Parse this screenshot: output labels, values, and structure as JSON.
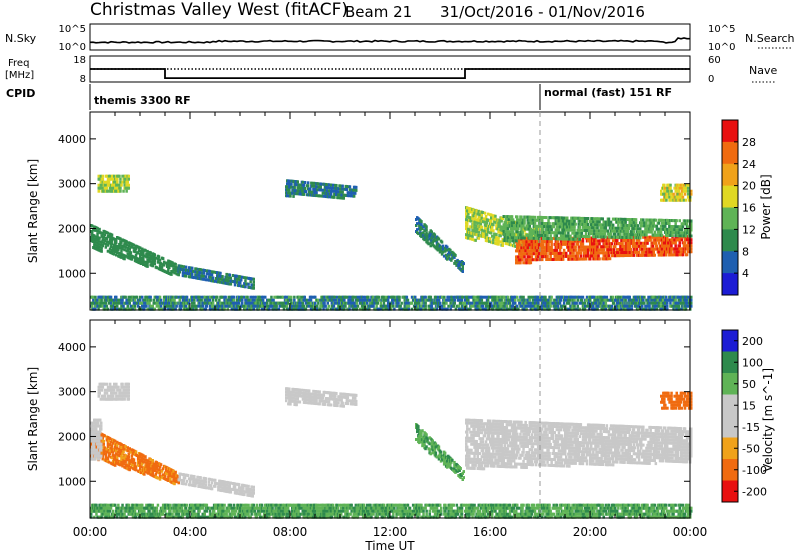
{
  "header": {
    "title": "Christmas Valley West (fitACF)",
    "beam": "Beam 21",
    "date_range": "31/Oct/2016 - 01/Nov/2016"
  },
  "summary": {
    "nsky_label": "N.Sky",
    "nsearch_label": "N.Search",
    "nsky_ticks": [
      "10^5",
      "10^0"
    ],
    "nsearch_ticks": [
      "10^5",
      "10^0"
    ],
    "freq_label": [
      "Freq",
      "[MHz]"
    ],
    "freq_ticks": [
      "18",
      "8"
    ],
    "nave_label": "Nave",
    "nave_ticks": [
      "60",
      "0"
    ],
    "cpid_label": "CPID",
    "cpid_segments": [
      "themis 3300 RF",
      "normal (fast) 151 RF"
    ],
    "cpid_switch_hour": 18.0,
    "freq_series": {
      "x_hours": [
        0,
        3.0,
        3.0,
        15.0,
        15.0,
        24
      ],
      "y_mhz": [
        13.0,
        13.0,
        9.5,
        9.5,
        13.0,
        13.0
      ]
    },
    "nave_series": {
      "x_hours": [
        0,
        24
      ],
      "y": [
        30,
        30
      ]
    }
  },
  "xaxis": {
    "label": "Time UT",
    "ticks": [
      "00:00",
      "04:00",
      "08:00",
      "12:00",
      "16:00",
      "20:00",
      "00:00"
    ],
    "range_hours": [
      0,
      24
    ]
  },
  "colors": {
    "power": [
      "#1c1cd4",
      "#1e5fb0",
      "#2e8a4d",
      "#5fb356",
      "#e0d823",
      "#f0a21a",
      "#f06b10",
      "#e81010"
    ],
    "velocity": [
      "#e81010",
      "#f06b10",
      "#f0a21a",
      "#c8c8c8",
      "#c8c8c8",
      "#5fb356",
      "#2e8a4d",
      "#1c1cd4"
    ],
    "grey": "#c8c8c8"
  },
  "chart_data": [
    {
      "type": "heatmap",
      "title": "Power",
      "ylabel": "Slant Range [km]",
      "xlabel": "",
      "ylim": [
        180,
        4600
      ],
      "yticks": [
        "1000",
        "2000",
        "3000",
        "4000"
      ],
      "colorbar": {
        "label": "Power [dB]",
        "ticks": [
          "4",
          "8",
          "12",
          "16",
          "20",
          "24",
          "28"
        ],
        "range": [
          0,
          32
        ]
      },
      "echo_regions": [
        {
          "t": [
            0.0,
            3.5
          ],
          "r_start": [
            2100,
            1200
          ],
          "r_end": [
            1600,
            950
          ],
          "value": [
            8,
            12
          ]
        },
        {
          "t": [
            3.5,
            6.5
          ],
          "r_start": [
            1200,
            900
          ],
          "r_end": [
            1000,
            650
          ],
          "value": [
            6,
            10
          ]
        },
        {
          "t": [
            0.3,
            1.5
          ],
          "r_start": [
            3200,
            3200
          ],
          "r_end": [
            2800,
            2800
          ],
          "value": [
            12,
            20
          ]
        },
        {
          "t": [
            7.8,
            10.6
          ],
          "r_start": [
            3100,
            2950
          ],
          "r_end": [
            2750,
            2700
          ],
          "value": [
            6,
            10
          ]
        },
        {
          "t": [
            13.0,
            14.9
          ],
          "r_start": [
            2300,
            1250
          ],
          "r_end": [
            1900,
            1050
          ],
          "value": [
            6,
            12
          ]
        },
        {
          "t": [
            15.0,
            18.0
          ],
          "r_start": [
            2500,
            2000
          ],
          "r_end": [
            1800,
            1500
          ],
          "value": [
            12,
            20
          ]
        },
        {
          "t": [
            17.0,
            24.0
          ],
          "r_start": [
            1800,
            1850
          ],
          "r_end": [
            1250,
            1450
          ],
          "value": [
            24,
            30
          ]
        },
        {
          "t": [
            16.5,
            24.0
          ],
          "r_start": [
            2300,
            2200
          ],
          "r_end": [
            1750,
            1850
          ],
          "value": [
            10,
            16
          ]
        },
        {
          "t": [
            22.8,
            24.0
          ],
          "r_start": [
            3000,
            3000
          ],
          "r_end": [
            2600,
            2600
          ],
          "value": [
            14,
            22
          ]
        },
        {
          "t": [
            0.0,
            24.0
          ],
          "r_start": [
            500,
            500
          ],
          "r_end": [
            200,
            200
          ],
          "value": [
            4,
            14
          ]
        }
      ]
    },
    {
      "type": "heatmap",
      "title": "Velocity",
      "ylabel": "Slant Range [km]",
      "xlabel": "Time UT",
      "ylim": [
        180,
        4600
      ],
      "yticks": [
        "1000",
        "2000",
        "3000",
        "4000"
      ],
      "colorbar": {
        "label": "Velocity [m s^-1]",
        "ticks": [
          "200",
          "100",
          "50",
          "15",
          "-15",
          "-50",
          "-100",
          "-200"
        ],
        "range": [
          -250,
          250
        ]
      },
      "echo_regions": [
        {
          "t": [
            0.0,
            3.5
          ],
          "r_start": [
            2200,
            1200
          ],
          "r_end": [
            1550,
            950
          ],
          "value": [
            -80,
            -40
          ]
        },
        {
          "t": [
            0.0,
            0.4
          ],
          "r_start": [
            2400,
            2400
          ],
          "r_end": [
            1500,
            1500
          ],
          "value": [
            0,
            0
          ]
        },
        {
          "t": [
            3.5,
            6.5
          ],
          "r_start": [
            1200,
            900
          ],
          "r_end": [
            1000,
            650
          ],
          "value": [
            0,
            0
          ]
        },
        {
          "t": [
            0.3,
            1.5
          ],
          "r_start": [
            3200,
            3200
          ],
          "r_end": [
            2800,
            2800
          ],
          "value": [
            0,
            0
          ]
        },
        {
          "t": [
            7.8,
            10.6
          ],
          "r_start": [
            3100,
            2950
          ],
          "r_end": [
            2750,
            2700
          ],
          "value": [
            0,
            0
          ]
        },
        {
          "t": [
            13.0,
            14.9
          ],
          "r_start": [
            2300,
            1250
          ],
          "r_end": [
            1900,
            1050
          ],
          "value": [
            30,
            60
          ]
        },
        {
          "t": [
            15.0,
            24.0
          ],
          "r_start": [
            2400,
            2200
          ],
          "r_end": [
            1300,
            1450
          ],
          "value": [
            0,
            0
          ]
        },
        {
          "t": [
            22.8,
            24.0
          ],
          "r_start": [
            3000,
            3000
          ],
          "r_end": [
            2600,
            2600
          ],
          "value": [
            -90,
            -50
          ]
        },
        {
          "t": [
            0.0,
            24.0
          ],
          "r_start": [
            500,
            500
          ],
          "r_end": [
            200,
            200
          ],
          "value": [
            20,
            70
          ]
        }
      ]
    }
  ]
}
